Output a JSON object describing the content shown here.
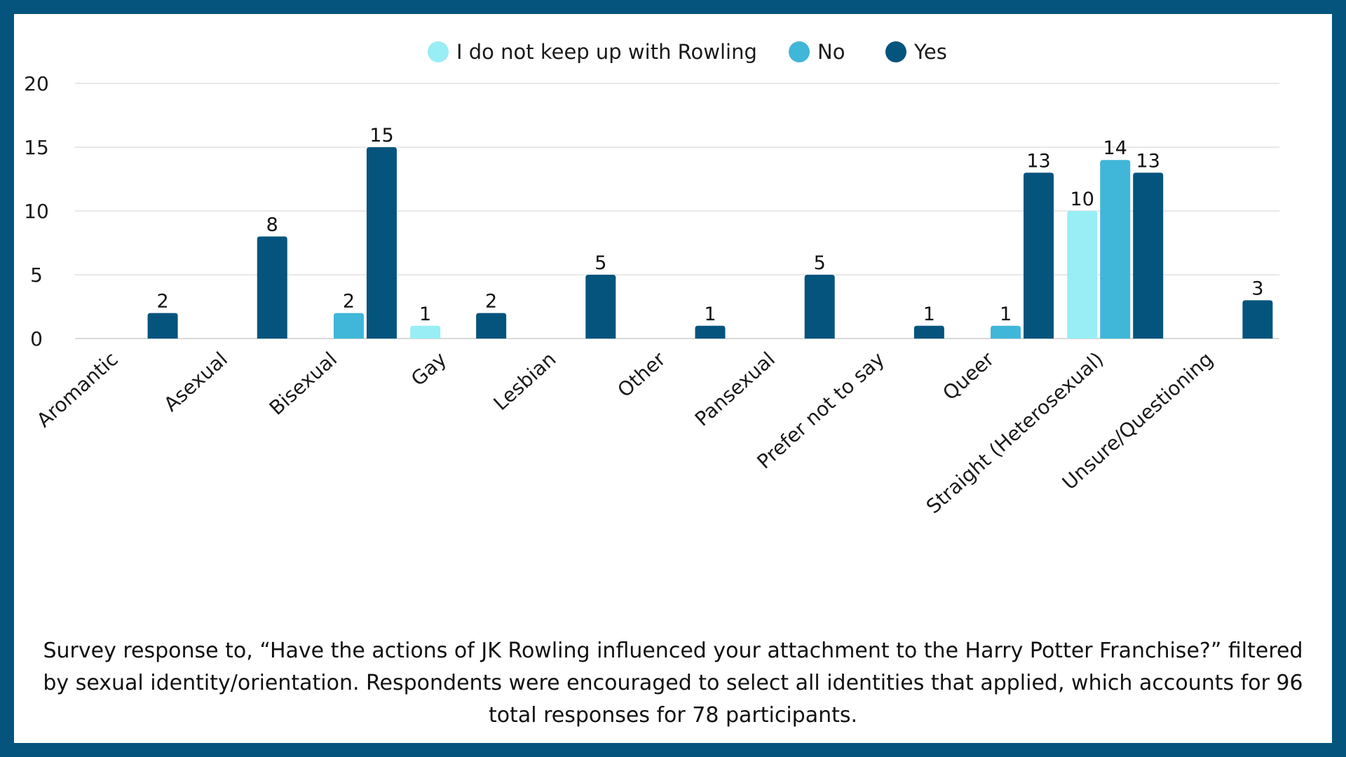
{
  "chart_data": {
    "type": "bar",
    "categories": [
      "Aromantic",
      "Asexual",
      "Bisexual",
      "Gay",
      "Lesbian",
      "Other",
      "Pansexual",
      "Prefer not to say",
      "Queer",
      "Straight (Heterosexual)",
      "Unsure/Questioning"
    ],
    "series": [
      {
        "name": "I do not keep up with Rowling",
        "color": "#98eef4",
        "values": [
          null,
          null,
          null,
          1,
          null,
          null,
          null,
          null,
          null,
          10,
          null
        ]
      },
      {
        "name": "No",
        "color": "#40b6d8",
        "values": [
          null,
          null,
          2,
          null,
          null,
          null,
          null,
          null,
          1,
          14,
          null
        ]
      },
      {
        "name": "Yes",
        "color": "#04547e",
        "values": [
          2,
          8,
          15,
          2,
          5,
          1,
          5,
          1,
          13,
          13,
          3
        ]
      }
    ],
    "yticks": [
      0,
      5,
      10,
      15,
      20
    ],
    "ylim": [
      0,
      20
    ],
    "grid": true,
    "legend": "top-center",
    "title": "",
    "xlabel": "",
    "ylabel": ""
  },
  "caption": "Survey response to, “Have the actions of JK Rowling influenced your attachment to the Harry Potter Franchise?” filtered by sexual identity/orientation. Respondents were encouraged to select all identities that applied, which accounts for 96 total responses for 78 participants."
}
